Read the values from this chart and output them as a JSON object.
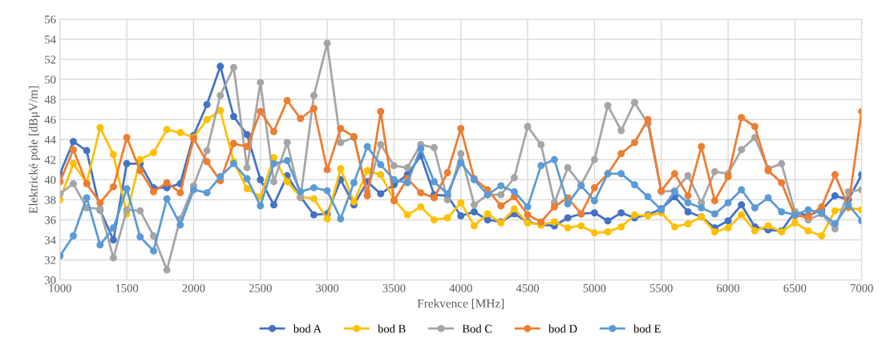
{
  "chart_data": {
    "type": "line",
    "xlabel": "Frekvence [MHz]",
    "ylabel": "Elektrické pole [dBμV/m]",
    "x": [
      1000,
      1100,
      1200,
      1300,
      1400,
      1500,
      1600,
      1700,
      1800,
      1900,
      2000,
      2100,
      2200,
      2300,
      2400,
      2500,
      2600,
      2700,
      2800,
      2900,
      3000,
      3100,
      3200,
      3300,
      3400,
      3500,
      3600,
      3700,
      3800,
      3900,
      4000,
      4100,
      4200,
      4300,
      4400,
      4500,
      4600,
      4700,
      4800,
      4900,
      5000,
      5100,
      5200,
      5300,
      5400,
      5500,
      5600,
      5700,
      5800,
      5900,
      6000,
      6100,
      6200,
      6300,
      6400,
      6500,
      6600,
      6700,
      6800,
      6900,
      7000
    ],
    "series": [
      {
        "name": "bod A",
        "color": "#4472c4",
        "values": [
          40.6,
          43.8,
          42.9,
          37.0,
          34.0,
          41.6,
          41.6,
          39.2,
          39.2,
          39.6,
          44.4,
          47.5,
          51.3,
          46.3,
          44.5,
          40.0,
          37.5,
          40.4,
          38.3,
          36.5,
          36.6,
          40.0,
          37.5,
          39.8,
          38.6,
          39.5,
          40.5,
          42.4,
          38.5,
          38.4,
          36.4,
          36.8,
          36.0,
          35.8,
          36.6,
          35.8,
          35.5,
          35.4,
          36.2,
          36.6,
          36.7,
          35.9,
          36.7,
          36.2,
          36.5,
          37.1,
          38.3,
          36.8,
          36.3,
          35.2,
          35.9,
          37.5,
          35.3,
          35.0,
          34.9,
          36.8,
          36.4,
          37.0,
          38.4,
          38.0,
          40.5
        ]
      },
      {
        "name": "bod B",
        "color": "#ffc000",
        "values": [
          38.0,
          41.6,
          39.7,
          45.2,
          42.5,
          36.6,
          42.0,
          42.7,
          45.0,
          44.7,
          44.2,
          46.0,
          46.9,
          41.8,
          39.1,
          38.3,
          42.2,
          39.8,
          38.3,
          38.1,
          36.1,
          41.1,
          37.8,
          40.9,
          40.5,
          38.0,
          36.5,
          37.3,
          36.0,
          36.2,
          37.7,
          35.4,
          36.6,
          35.7,
          37.1,
          35.7,
          35.5,
          35.8,
          35.2,
          35.4,
          34.7,
          34.8,
          35.3,
          36.5,
          36.4,
          36.7,
          35.3,
          35.6,
          36.3,
          34.8,
          35.2,
          36.5,
          34.9,
          35.4,
          34.8,
          35.7,
          34.9,
          34.4,
          36.9,
          37.2,
          37.0
        ]
      },
      {
        "name": "Bod C",
        "color": "#a5a5a5",
        "values": [
          38.6,
          39.6,
          37.2,
          37.1,
          32.2,
          37.0,
          36.9,
          34.4,
          31.0,
          36.1,
          39.4,
          42.9,
          48.4,
          51.2,
          41.2,
          49.7,
          39.8,
          43.7,
          38.2,
          48.4,
          53.6,
          43.7,
          44.2,
          38.8,
          43.5,
          41.4,
          41.2,
          43.5,
          43.2,
          38.0,
          42.6,
          37.5,
          38.5,
          38.5,
          40.2,
          45.3,
          43.5,
          37.7,
          41.2,
          39.5,
          42.0,
          47.4,
          44.9,
          47.7,
          45.6,
          38.8,
          38.9,
          40.4,
          37.7,
          40.8,
          40.6,
          43.0,
          44.2,
          41.1,
          41.6,
          36.8,
          36.0,
          36.6,
          35.1,
          38.8,
          39.0
        ]
      },
      {
        "name": "bod D",
        "color": "#ed7d31",
        "values": [
          39.8,
          43.0,
          39.6,
          37.7,
          39.3,
          44.2,
          40.9,
          38.8,
          39.7,
          38.7,
          44.1,
          41.8,
          39.9,
          43.6,
          43.3,
          46.8,
          44.8,
          47.9,
          46.1,
          47.1,
          41.0,
          45.1,
          44.3,
          38.4,
          46.8,
          37.9,
          40.1,
          38.7,
          38.2,
          40.7,
          45.1,
          40.1,
          39.0,
          37.4,
          38.3,
          36.5,
          35.8,
          37.3,
          38.2,
          36.6,
          39.2,
          40.6,
          42.6,
          43.7,
          46.0,
          38.9,
          40.6,
          38.4,
          43.3,
          37.9,
          40.3,
          46.2,
          45.3,
          40.9,
          39.7,
          36.4,
          36.3,
          37.3,
          40.5,
          37.3,
          46.8
        ]
      },
      {
        "name": "bod E",
        "color": "#5b9bd5",
        "values": [
          32.4,
          34.4,
          38.2,
          33.5,
          35.2,
          39.1,
          34.3,
          32.9,
          38.1,
          35.5,
          39.0,
          38.7,
          40.3,
          41.6,
          40.1,
          37.4,
          41.6,
          41.9,
          38.8,
          39.2,
          38.9,
          36.1,
          39.7,
          43.3,
          41.5,
          40.0,
          39.7,
          43.1,
          39.8,
          38.6,
          41.7,
          40.0,
          38.5,
          39.4,
          38.8,
          37.3,
          41.4,
          42.0,
          37.6,
          39.4,
          37.9,
          40.6,
          40.6,
          39.5,
          38.3,
          37.0,
          38.8,
          37.7,
          37.2,
          36.6,
          37.7,
          39.0,
          37.2,
          38.2,
          36.8,
          36.5,
          37.0,
          36.7,
          35.6,
          37.5,
          35.9
        ]
      }
    ],
    "xlim": [
      1000,
      7000
    ],
    "xticks": [
      1000,
      1500,
      2000,
      2500,
      3000,
      3500,
      4000,
      4500,
      5000,
      5500,
      6000,
      6500,
      7000
    ],
    "ylim": [
      30,
      56
    ],
    "yticks": [
      30,
      32,
      34,
      36,
      38,
      40,
      42,
      44,
      46,
      48,
      50,
      52,
      54,
      56
    ],
    "grid": true,
    "legend": "bottom",
    "marker": "circle",
    "line_style": "solid"
  }
}
